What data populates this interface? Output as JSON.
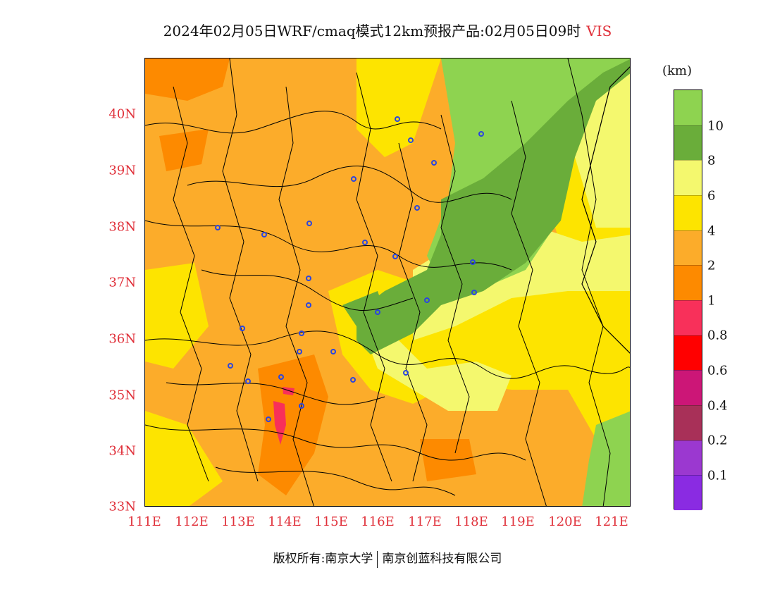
{
  "title": {
    "main": "2024年02月05日WRF/cmaq模式12km预报产品:02月05日09时",
    "variable": "VIS"
  },
  "axes": {
    "y_ticks": [
      "40N",
      "39N",
      "38N",
      "37N",
      "36N",
      "35N",
      "34N",
      "33N"
    ],
    "x_ticks": [
      "111E",
      "112E",
      "113E",
      "114E",
      "115E",
      "116E",
      "117E",
      "118E",
      "119E",
      "120E",
      "121E"
    ]
  },
  "colorbar": {
    "unit": "(km)",
    "labels": [
      "10",
      "8",
      "6",
      "4",
      "2",
      "1",
      "0.8",
      "0.6",
      "0.4",
      "0.2",
      "0.1"
    ],
    "colors": [
      "#8ed350",
      "#6aad3a",
      "#f4f86e",
      "#fde400",
      "#fcac2a",
      "#fd8a00",
      "#f8305a",
      "#ff0000",
      "#cc1677",
      "#a83058",
      "#9b38d0",
      "#8a2be2"
    ]
  },
  "footer": {
    "left": "版权所有:南京大学",
    "right": "南京创蓝科技有限公司"
  }
}
